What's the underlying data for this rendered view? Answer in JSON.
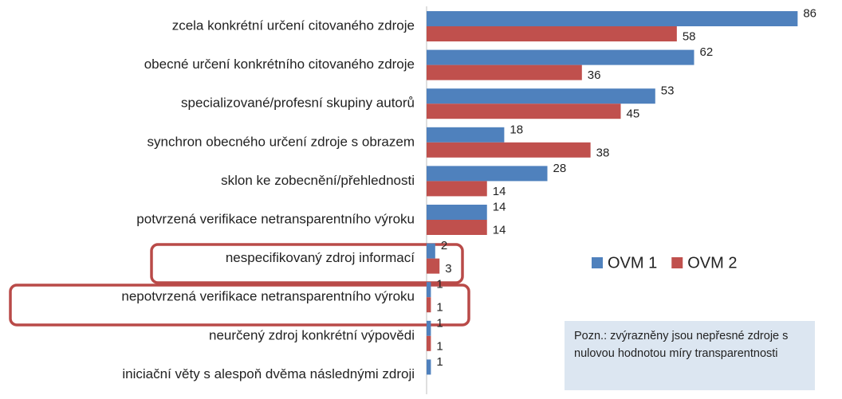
{
  "chart_data": {
    "type": "hbar",
    "categories": [
      "zcela konkrétní určení citovaného zdroje",
      "obecné určení konkrétního citovaného zdroje",
      "specializované/profesní skupiny autorů",
      "synchron obecného určení zdroje s obrazem",
      "sklon ke zobecnění/přehlednosti",
      "potvrzená verifikace netransparentního výroku",
      "nespecifikovaný zdroj informací",
      "nepotvrzená verifikace netransparentního výroku",
      "neurčený zdroj konkrétní výpovědi",
      "iniciační věty s alespoň dvěma následnými zdroji"
    ],
    "series": [
      {
        "name": "OVM 1",
        "color": "#4f81bd",
        "values": [
          86,
          62,
          53,
          18,
          28,
          14,
          2,
          1,
          1,
          1
        ]
      },
      {
        "name": "OVM 2",
        "color": "#c0504d",
        "values": [
          58,
          36,
          45,
          38,
          14,
          14,
          3,
          1,
          1,
          null
        ]
      }
    ],
    "xlim": [
      0,
      90
    ],
    "annotation": "Pozn.: zvýrazněny jsou nepřesné zdroje s nulovou hodnotou míry transparentnosti"
  }
}
